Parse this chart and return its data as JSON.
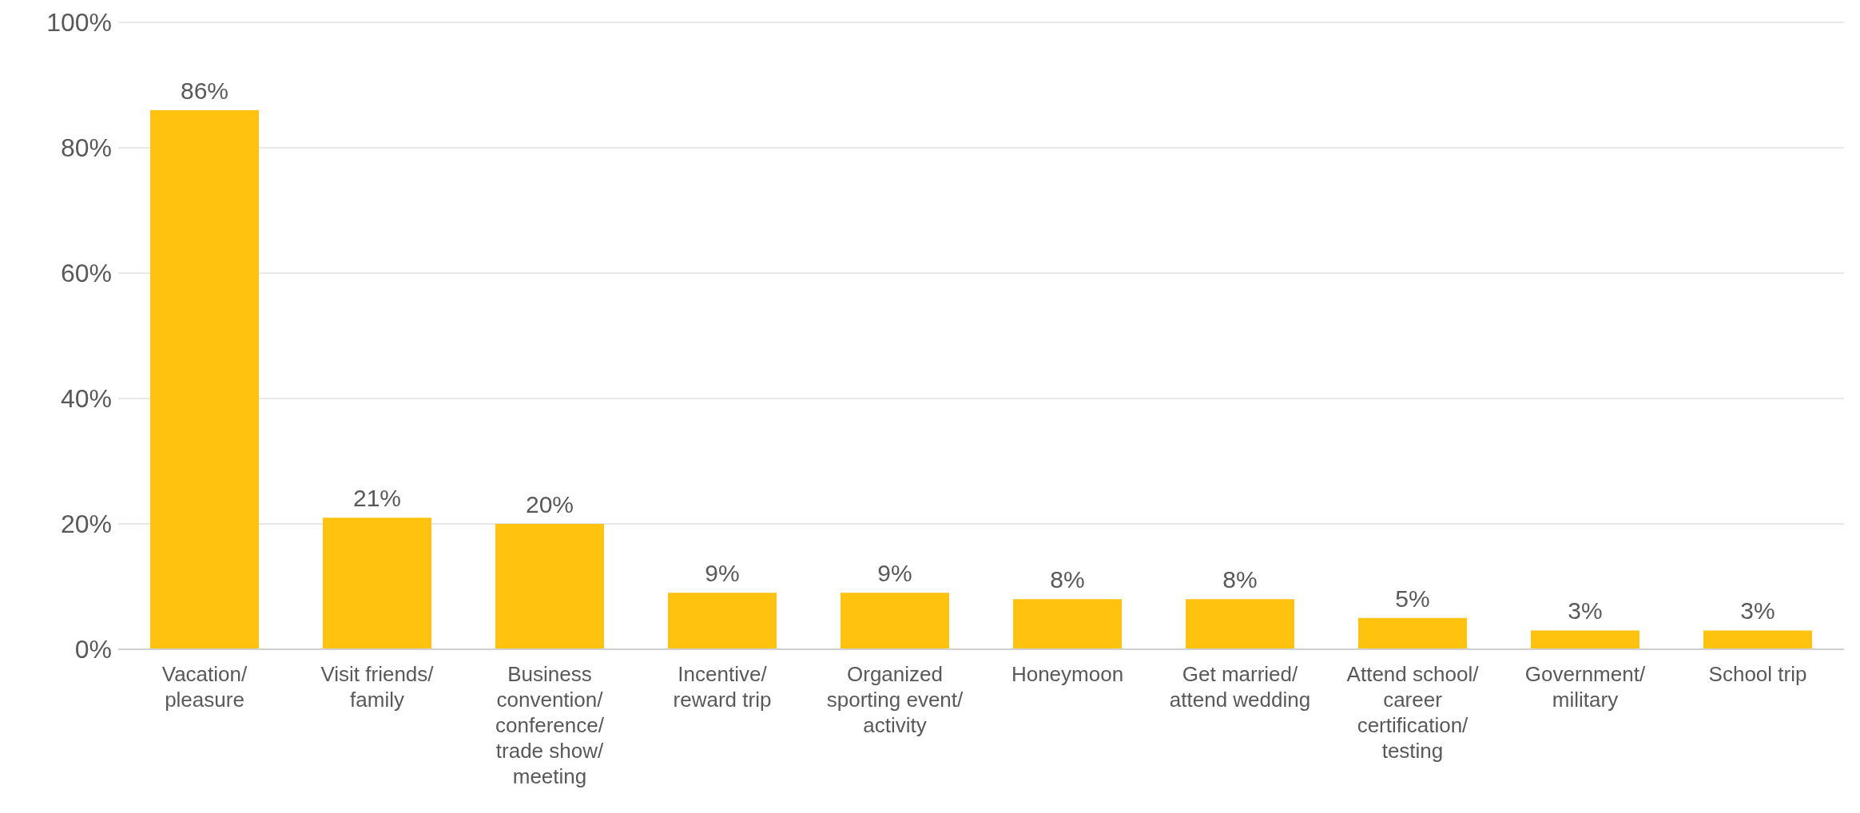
{
  "chart_data": {
    "type": "bar",
    "categories": [
      "Vacation/ pleasure",
      "Visit friends/ family",
      "Business convention/ conference/ trade show/ meeting",
      "Incentive/ reward trip",
      "Organized sporting event/ activity",
      "Honeymoon",
      "Get married/ attend wedding",
      "Attend school/ career certification/ testing",
      "Government/ military",
      "School trip"
    ],
    "values": [
      86,
      21,
      20,
      9,
      9,
      8,
      8,
      5,
      3,
      3
    ],
    "value_labels": [
      "86%",
      "21%",
      "20%",
      "9%",
      "9%",
      "8%",
      "8%",
      "5%",
      "3%",
      "3%"
    ],
    "color": "#ffc20e",
    "ylim": [
      0,
      100
    ],
    "yticks": [
      {
        "value": 0,
        "label": "0%"
      },
      {
        "value": 20,
        "label": "20%"
      },
      {
        "value": 40,
        "label": "40%"
      },
      {
        "value": 60,
        "label": "60%"
      },
      {
        "value": 80,
        "label": "80%"
      },
      {
        "value": 100,
        "label": "100%"
      }
    ],
    "grid": "y",
    "legend": false
  }
}
